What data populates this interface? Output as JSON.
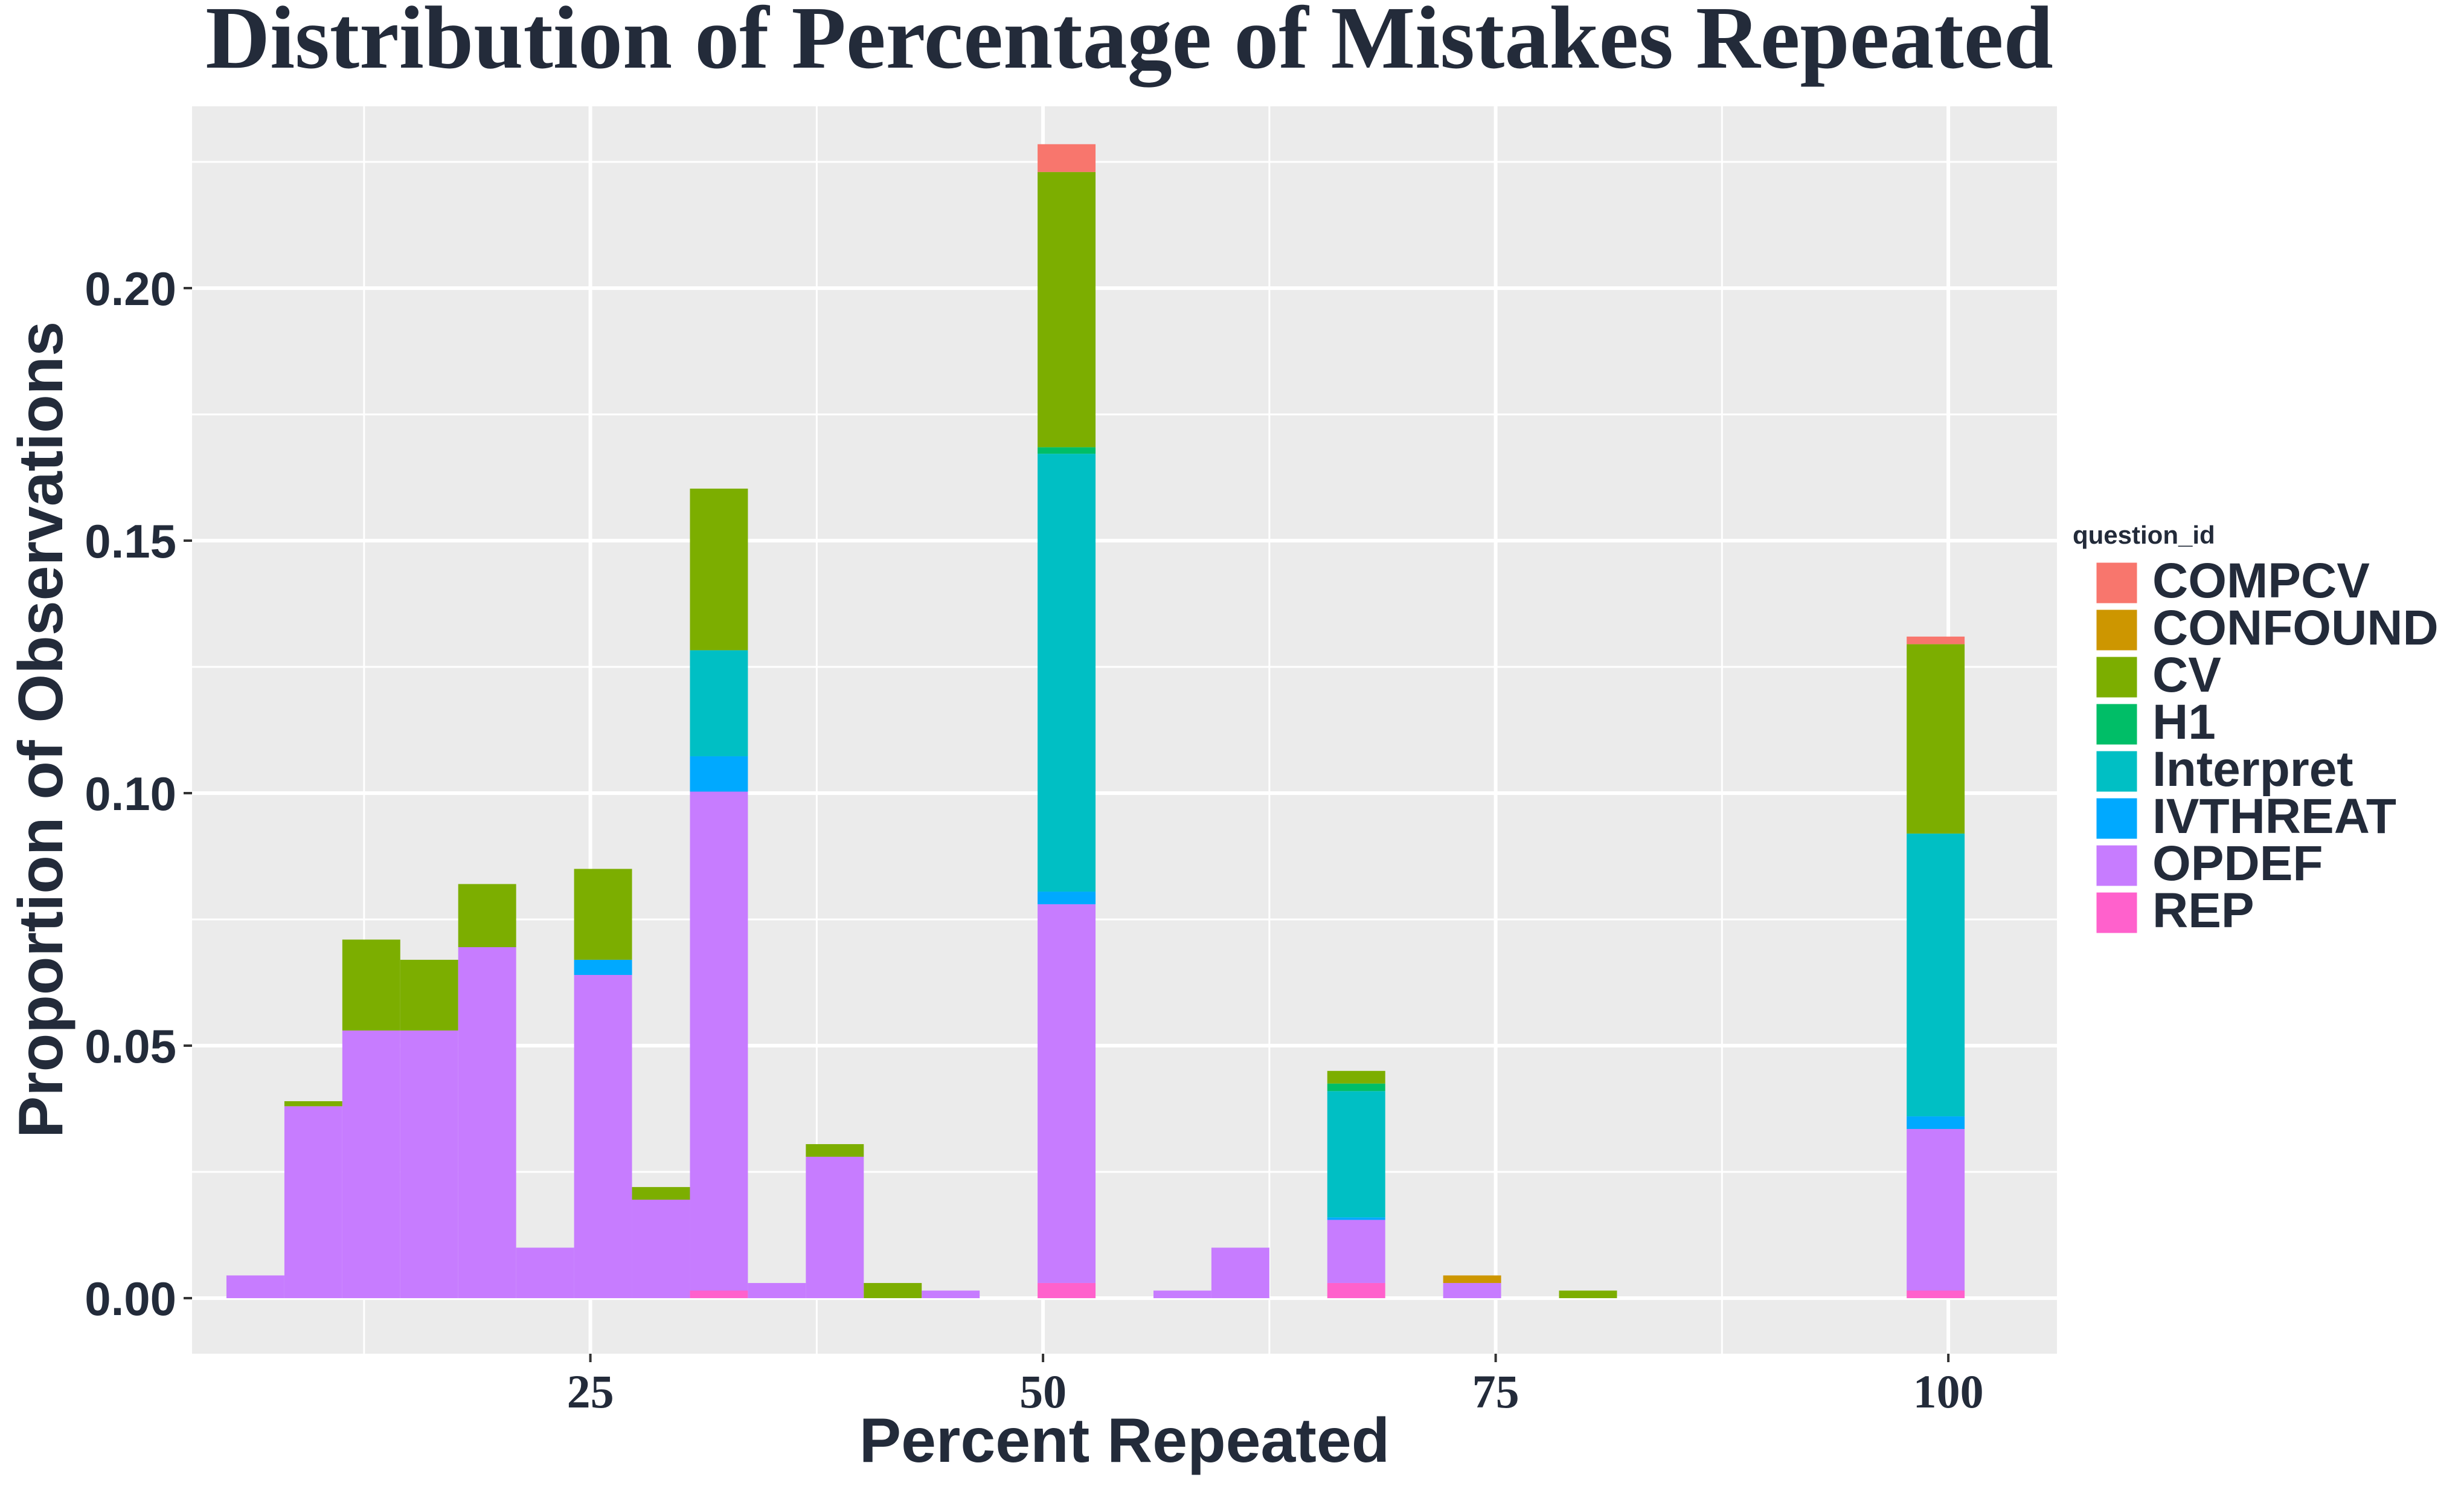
{
  "chart_data": {
    "type": "bar",
    "stacked": true,
    "title": "Distribution of Percentage of Mistakes Repeated",
    "xlabel": "Percent Repeated",
    "ylabel": "Proportion of Observations",
    "xlim": [
      3,
      106
    ],
    "ylim": [
      -0.011,
      0.236
    ],
    "x_ticks": [
      25,
      50,
      75,
      100
    ],
    "x_tick_labels": [
      "25",
      "50",
      "75",
      "100"
    ],
    "y_ticks": [
      0,
      0.05,
      0.1,
      0.15,
      0.2
    ],
    "y_tick_labels": [
      "0.00",
      "0.05",
      "0.10",
      "0.15",
      "0.20"
    ],
    "grid": true,
    "legend_position": "right",
    "legend_title": "question_id",
    "series_order": [
      "COMPCV",
      "CONFOUND",
      "CV",
      "H1",
      "Interpret",
      "IVTHREAT",
      "OPDEF",
      "REP"
    ],
    "colors": {
      "COMPCV": "#F8766D",
      "CONFOUND": "#CD9600",
      "CV": "#7CAE00",
      "H1": "#00BE67",
      "Interpret": "#00BFC4",
      "IVTHREAT": "#00A9FF",
      "OPDEF": "#C77CFF",
      "REP": "#FF61CC"
    },
    "bin_width": 3.2,
    "bins": [
      {
        "x": 6.5,
        "OPDEF": 0.0045
      },
      {
        "x": 9.7,
        "OPDEF": 0.038,
        "CV": 0.001
      },
      {
        "x": 12.9,
        "OPDEF": 0.053,
        "CV": 0.018
      },
      {
        "x": 16.1,
        "OPDEF": 0.053,
        "CV": 0.014
      },
      {
        "x": 19.3,
        "OPDEF": 0.0695,
        "CV": 0.0125
      },
      {
        "x": 22.5,
        "OPDEF": 0.01
      },
      {
        "x": 25.7,
        "OPDEF": 0.064,
        "IVTHREAT": 0.003,
        "CV": 0.018
      },
      {
        "x": 28.9,
        "OPDEF": 0.0195,
        "CV": 0.0025
      },
      {
        "x": 32.1,
        "REP": 0.0015,
        "OPDEF": 0.0988,
        "IVTHREAT": 0.007,
        "Interpret": 0.021,
        "CV": 0.032
      },
      {
        "x": 35.3,
        "OPDEF": 0.003
      },
      {
        "x": 38.5,
        "OPDEF": 0.028,
        "CV": 0.0025
      },
      {
        "x": 41.7,
        "CV": 0.003
      },
      {
        "x": 44.9,
        "OPDEF": 0.0015
      },
      {
        "x": 51.3,
        "REP": 0.003,
        "OPDEF": 0.075,
        "IVTHREAT": 0.0025,
        "Interpret": 0.0867,
        "H1": 0.0013,
        "CV": 0.0545,
        "COMPCV": 0.0055
      },
      {
        "x": 57.7,
        "OPDEF": 0.0015
      },
      {
        "x": 60.9,
        "OPDEF": 0.01
      },
      {
        "x": 67.3,
        "REP": 0.003,
        "OPDEF": 0.0125,
        "IVTHREAT": 0.0005,
        "Interpret": 0.025,
        "H1": 0.0015,
        "CV": 0.0025
      },
      {
        "x": 73.7,
        "OPDEF": 0.003,
        "CONFOUND": 0.0015
      },
      {
        "x": 80.1,
        "CV": 0.0015
      },
      {
        "x": 99.3,
        "REP": 0.0015,
        "OPDEF": 0.032,
        "IVTHREAT": 0.0025,
        "Interpret": 0.056,
        "CV": 0.0375,
        "COMPCV": 0.0015
      }
    ]
  }
}
